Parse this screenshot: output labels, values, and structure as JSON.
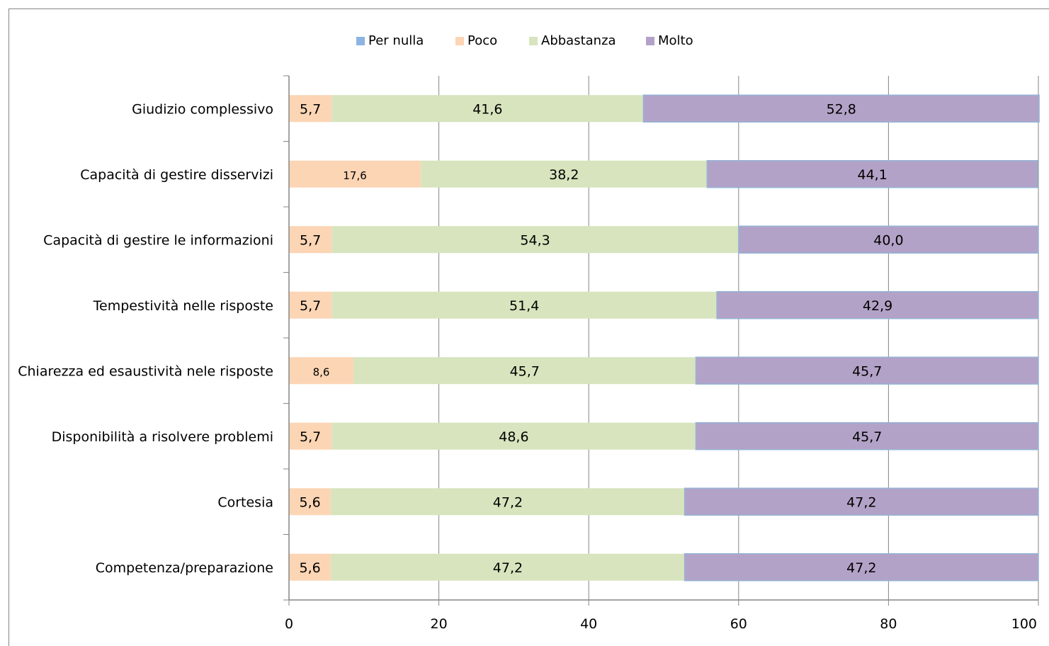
{
  "chart_data": {
    "type": "bar",
    "orientation": "horizontal",
    "stacked": true,
    "categories": [
      "Giudizio complessivo",
      "Capacità di gestire disservizi",
      "Capacità di gestire le informazioni",
      "Tempestività nelle risposte",
      "Chiarezza ed esaustività nele risposte",
      "Disponibilità a risolvere problemi",
      "Cortesia",
      "Competenza/preparazione"
    ],
    "series": [
      {
        "name": "Per nulla",
        "color": "#8DB4E2",
        "values": [
          0,
          0,
          0,
          0,
          0,
          0,
          0,
          0
        ],
        "labels": [
          "",
          "",
          "",
          "",
          "",
          "",
          "",
          ""
        ]
      },
      {
        "name": "Poco",
        "color": "#FCD5B5",
        "values": [
          5.7,
          17.6,
          5.7,
          5.7,
          8.6,
          5.7,
          5.6,
          5.6
        ],
        "labels": [
          "5,7",
          "17,6",
          "5,7",
          "5,7",
          "8,6",
          "5,7",
          "5,6",
          "5,6"
        ]
      },
      {
        "name": "Abbastanza",
        "color": "#D7E4BD",
        "values": [
          41.6,
          38.2,
          54.3,
          51.4,
          45.7,
          48.6,
          47.2,
          47.2
        ],
        "labels": [
          "41,6",
          "38,2",
          "54,3",
          "51,4",
          "45,7",
          "48,6",
          "47,2",
          "47,2"
        ]
      },
      {
        "name": "Molto",
        "color": "#B3A2C7",
        "values": [
          52.8,
          44.1,
          40.0,
          42.9,
          45.7,
          45.7,
          47.2,
          47.2
        ],
        "labels": [
          "52,8",
          "44,1",
          "40,0",
          "42,9",
          "45,7",
          "45,7",
          "47,2",
          "47,2"
        ]
      }
    ],
    "xlim": [
      0,
      100
    ],
    "x_ticks": [
      "0",
      "20",
      "40",
      "60",
      "80",
      "100"
    ],
    "grid": true,
    "legend_position": "top",
    "title": "",
    "xlabel": "",
    "ylabel": ""
  }
}
